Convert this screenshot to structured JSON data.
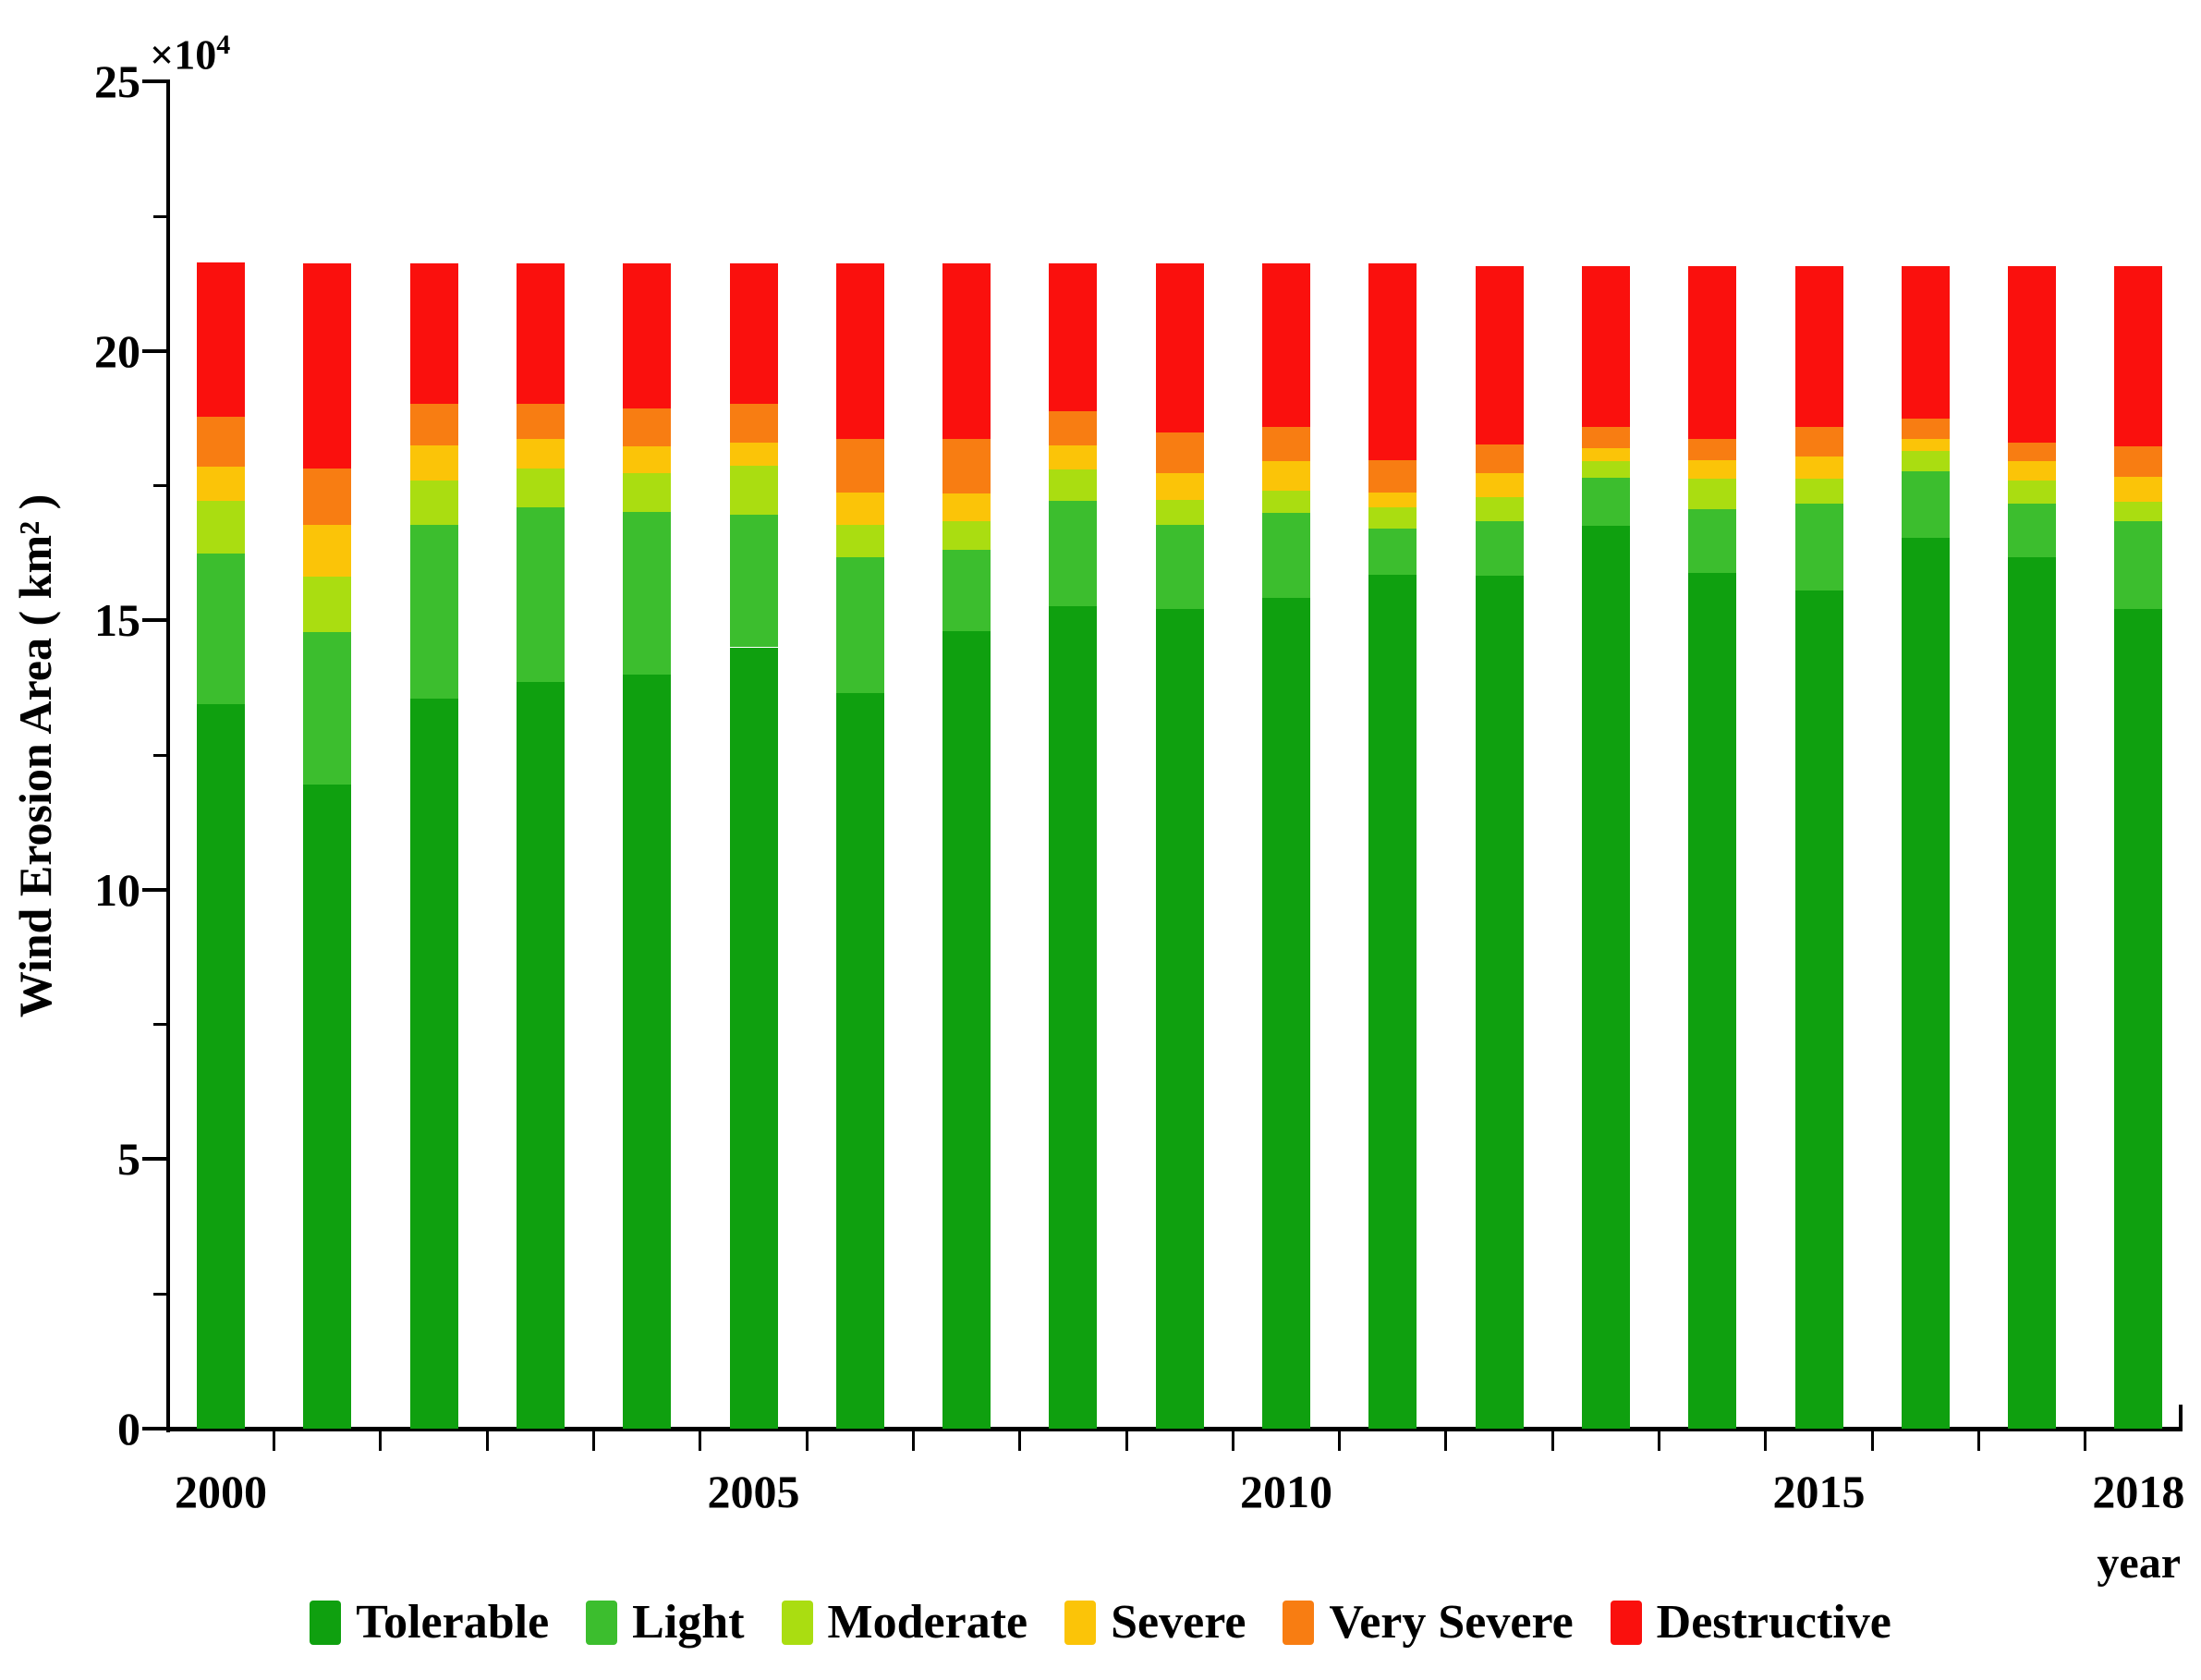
{
  "figure": {
    "y_offset": {
      "base": "×10",
      "exp": "4"
    }
  },
  "chart_data": {
    "type": "bar",
    "stacked": true,
    "title": "",
    "xlabel": "year",
    "ylabel": "Wind Erosion Area ( km² )",
    "y_scale_label": "×10⁴",
    "units": "10⁴ km²",
    "ylim": [
      0,
      25
    ],
    "yticks": [
      0,
      5,
      10,
      15,
      20,
      25
    ],
    "y_minor_ticks": [
      2.5,
      7.5,
      12.5,
      17.5,
      22.5
    ],
    "grid": false,
    "legend_position": "bottom",
    "categories": [
      "2000",
      "2001",
      "2002",
      "2003",
      "2004",
      "2005",
      "2006",
      "2007",
      "2008",
      "2009",
      "2010",
      "2011",
      "2012",
      "2013",
      "2014",
      "2015",
      "2016",
      "2017",
      "2018"
    ],
    "xtick_positions": [
      0,
      5,
      10,
      15,
      18
    ],
    "xtick_labels": [
      "2000",
      "2005",
      "2010",
      "2015",
      "2018"
    ],
    "series": [
      {
        "name": "Tolerable",
        "color": "#0FA00F",
        "values": [
          13.45,
          11.95,
          13.55,
          13.85,
          14.0,
          14.5,
          13.65,
          14.8,
          15.26,
          15.21,
          15.42,
          15.85,
          15.83,
          16.75,
          15.88,
          15.56,
          16.54,
          16.17,
          15.21
        ]
      },
      {
        "name": "Light",
        "color": "#3CBE2E",
        "values": [
          2.79,
          2.84,
          3.22,
          3.24,
          3.02,
          2.46,
          2.52,
          1.51,
          1.96,
          1.56,
          1.57,
          0.85,
          1.01,
          0.9,
          1.18,
          1.6,
          1.23,
          0.99,
          1.63
        ]
      },
      {
        "name": "Moderate",
        "color": "#AADD11",
        "values": [
          0.98,
          1.03,
          0.83,
          0.73,
          0.71,
          0.91,
          0.6,
          0.53,
          0.58,
          0.46,
          0.42,
          0.39,
          0.45,
          0.3,
          0.57,
          0.47,
          0.37,
          0.43,
          0.36
        ]
      },
      {
        "name": "Severe",
        "color": "#FBC408",
        "values": [
          0.63,
          0.95,
          0.64,
          0.55,
          0.5,
          0.43,
          0.61,
          0.51,
          0.45,
          0.5,
          0.54,
          0.29,
          0.44,
          0.25,
          0.35,
          0.42,
          0.23,
          0.36,
          0.46
        ]
      },
      {
        "name": "Very Severe",
        "color": "#F87D12",
        "values": [
          0.93,
          1.05,
          0.78,
          0.65,
          0.71,
          0.72,
          0.99,
          1.02,
          0.64,
          0.75,
          0.64,
          0.6,
          0.54,
          0.39,
          0.39,
          0.54,
          0.37,
          0.35,
          0.57
        ]
      },
      {
        "name": "Destructive",
        "color": "#FA100D",
        "values": [
          2.87,
          3.81,
          2.61,
          2.61,
          2.69,
          2.6,
          3.26,
          3.25,
          2.74,
          3.15,
          3.04,
          3.65,
          3.31,
          2.99,
          3.21,
          2.99,
          2.84,
          3.28,
          3.35
        ]
      }
    ]
  }
}
